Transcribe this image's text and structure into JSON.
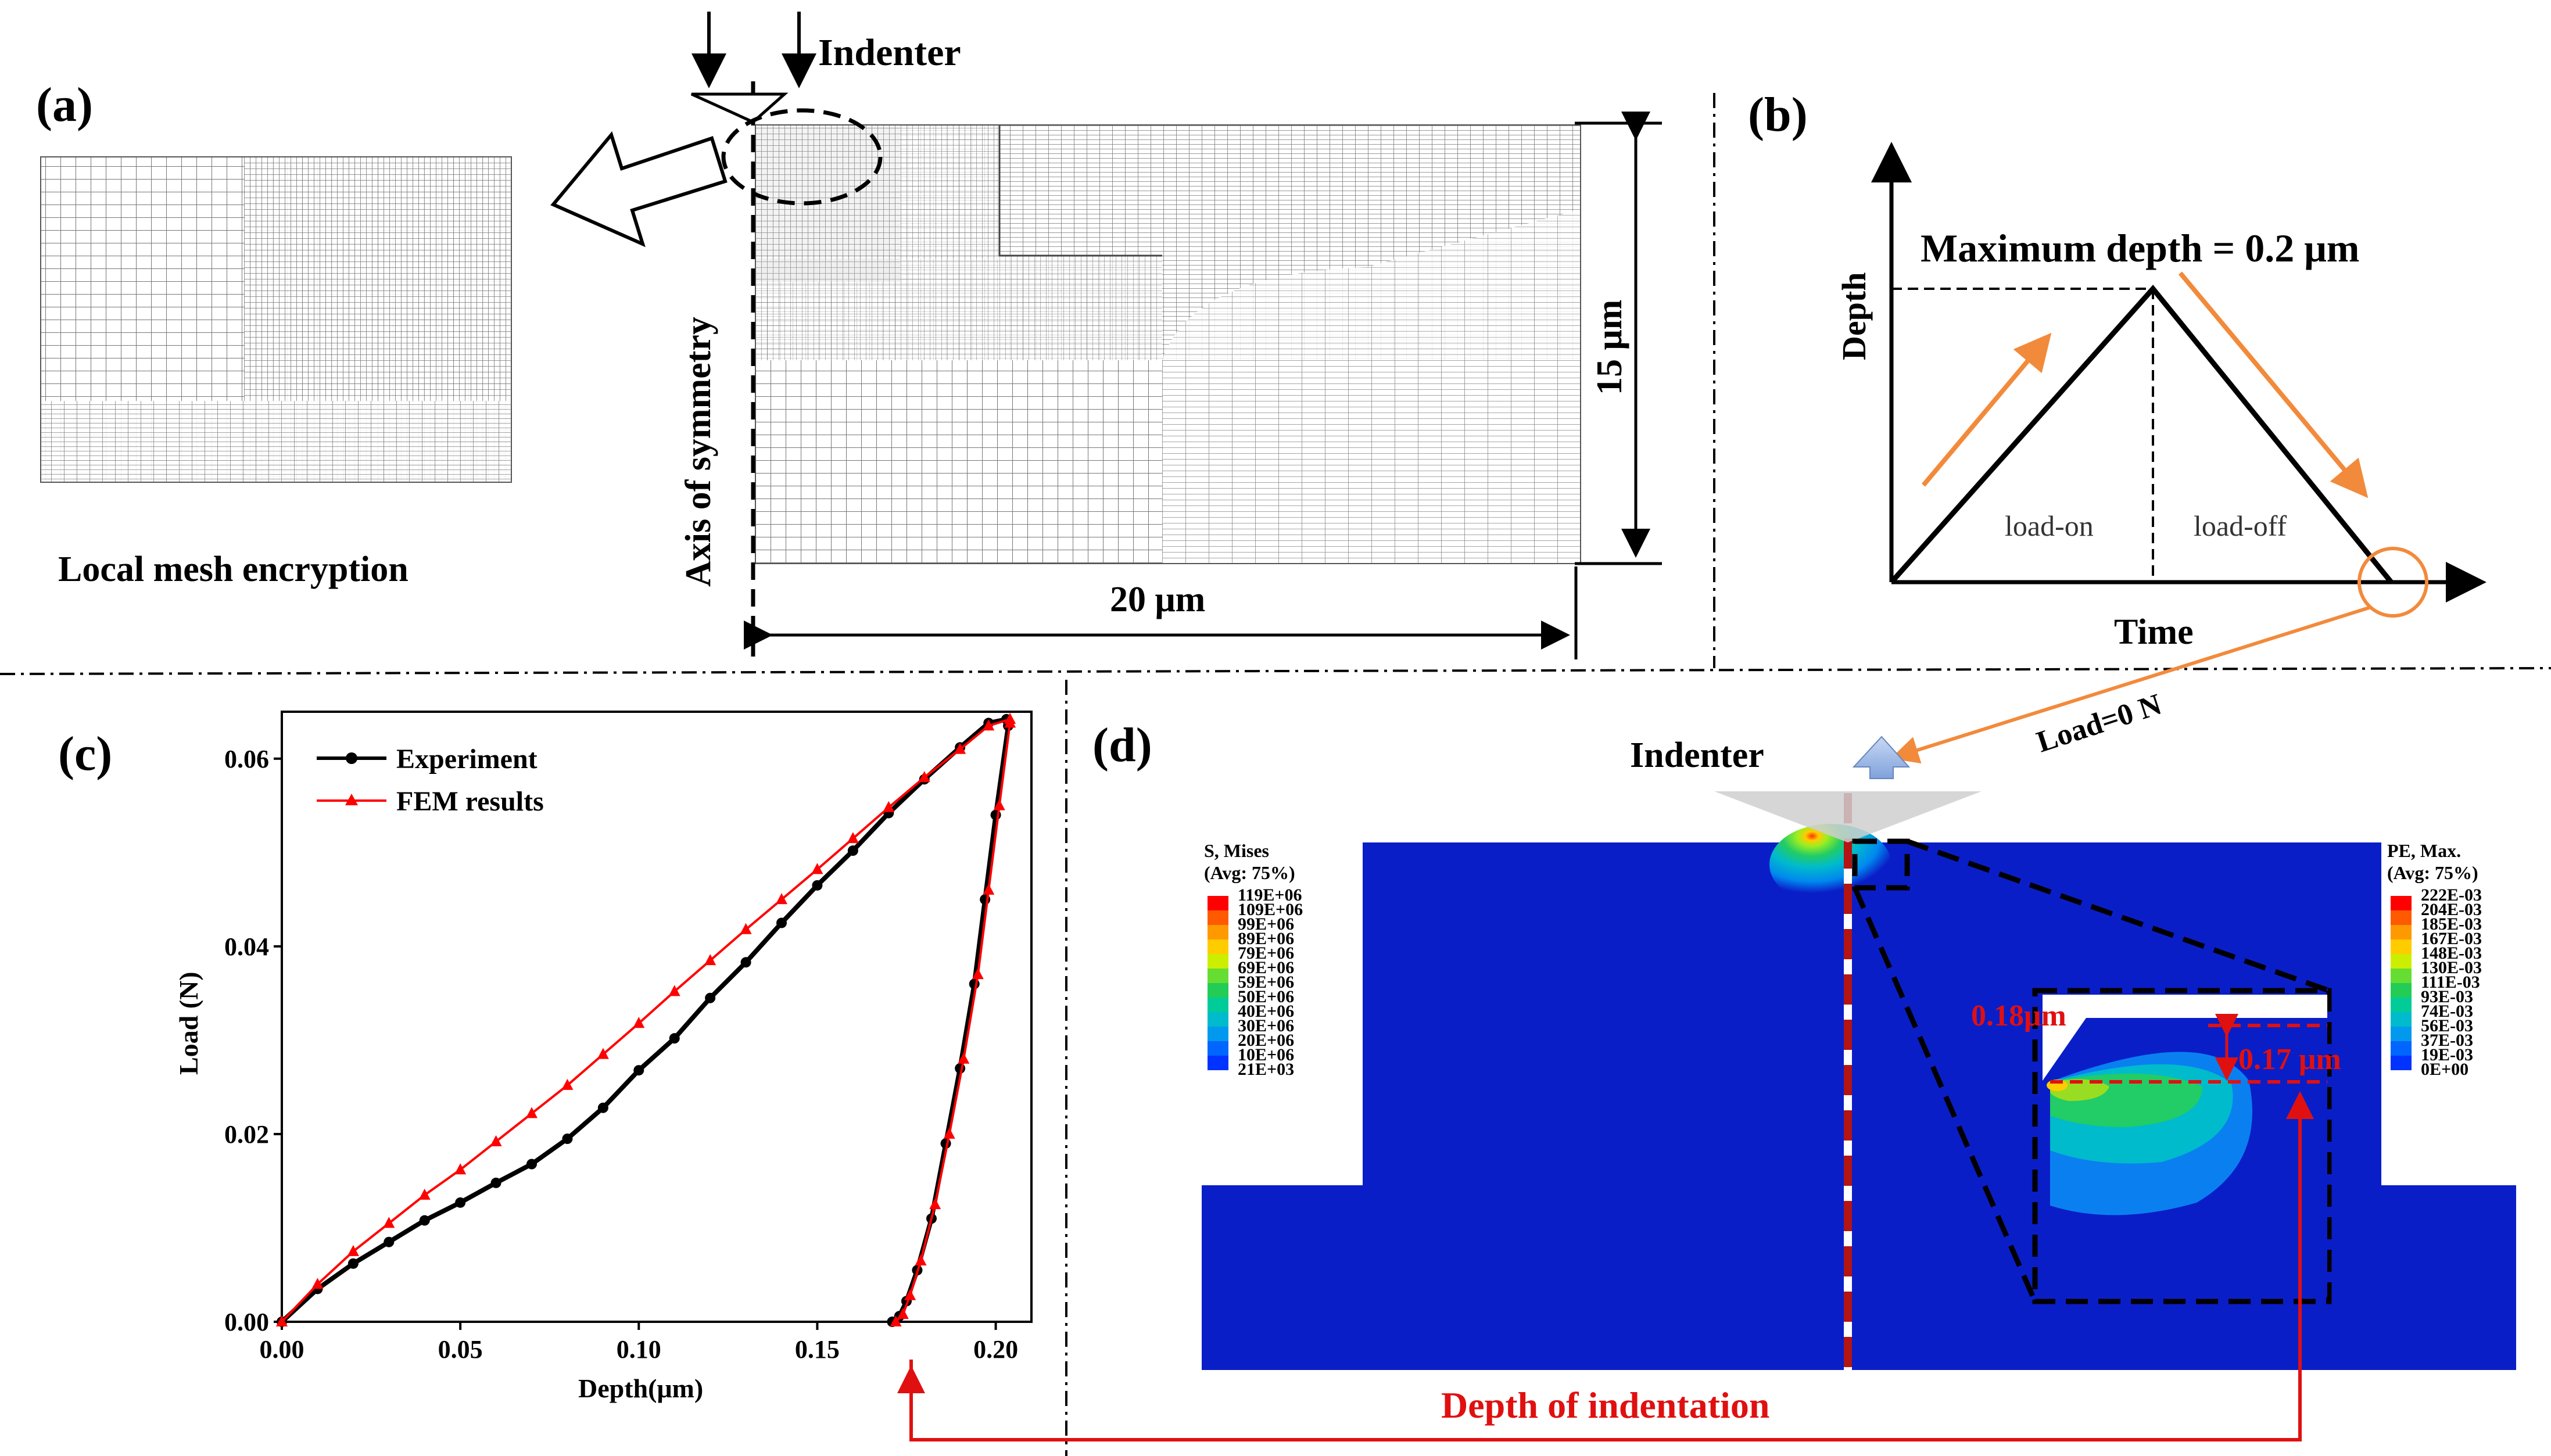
{
  "panel_a": {
    "label": "(a)",
    "indenter": "Indenter",
    "local_mesh": "Local mesh encryption",
    "axis": "Axis of symmetry",
    "height": "15 μm",
    "width": "20 μm"
  },
  "panel_b": {
    "label": "(b)",
    "max_depth": "Maximum depth = 0.2 μm",
    "ylabel": "Depth",
    "xlabel": "Time",
    "load_on": "load-on",
    "load_off": "load-off",
    "load_zero": "Load=0 N"
  },
  "panel_c": {
    "label": "(c)",
    "legend_exp": "Experiment",
    "legend_fem": "FEM results",
    "xlabel": "Depth(μm)",
    "ylabel": "Load (N)"
  },
  "panel_d": {
    "label": "(d)",
    "indenter": "Indenter",
    "mises_title1": "S, Mises",
    "mises_title2": "(Avg: 75%)",
    "mises_values": [
      "119E+06",
      "109E+06",
      "99E+06",
      "89E+06",
      "79E+06",
      "69E+06",
      "59E+06",
      "50E+06",
      "40E+06",
      "30E+06",
      "20E+06",
      "10E+06",
      "21E+03"
    ],
    "pe_title1": "PE, Max.",
    "pe_title2": "(Avg: 75%)",
    "pe_values": [
      "222E-03",
      "204E-03",
      "185E-03",
      "167E-03",
      "148E-03",
      "130E-03",
      "111E-03",
      "93E-03",
      "74E-03",
      "56E-03",
      "37E-03",
      "19E-03",
      "0E+00"
    ],
    "legend_colors": [
      "#ff0000",
      "#ff5a00",
      "#ff9900",
      "#ffcc00",
      "#ccee00",
      "#66dd33",
      "#22cc55",
      "#00cc99",
      "#00bbcc",
      "#0099ee",
      "#0066ff",
      "#0033ff",
      "#0000ee"
    ],
    "depth_018": "0.18μm",
    "depth_017": "0.17 μm",
    "depth_label": "Depth of indentation",
    "substrate_color": "#0a1ec8"
  },
  "chart_data": {
    "type": "line",
    "xlabel": "Depth(μm)",
    "ylabel": "Load (N)",
    "xlim": [
      0,
      0.21
    ],
    "ylim": [
      0,
      0.065
    ],
    "xticks": [
      "0.00",
      "0.05",
      "0.10",
      "0.15",
      "0.20"
    ],
    "yticks": [
      "0.00",
      "0.02",
      "0.04",
      "0.06"
    ],
    "series": [
      {
        "name": "Experiment",
        "color": "#000000",
        "x": [
          0.0,
          0.01,
          0.02,
          0.03,
          0.04,
          0.05,
          0.06,
          0.07,
          0.08,
          0.09,
          0.1,
          0.11,
          0.12,
          0.13,
          0.14,
          0.15,
          0.16,
          0.17,
          0.18,
          0.19,
          0.198,
          0.203,
          0.2035,
          0.2,
          0.197,
          0.194,
          0.19,
          0.186,
          0.182,
          0.178,
          0.175,
          0.173,
          0.171
        ],
        "y": [
          0.0,
          0.0035,
          0.0062,
          0.0085,
          0.0108,
          0.0127,
          0.0148,
          0.0168,
          0.0195,
          0.0228,
          0.0268,
          0.0302,
          0.0345,
          0.0383,
          0.0425,
          0.0465,
          0.0502,
          0.0542,
          0.0578,
          0.0612,
          0.0638,
          0.0642,
          0.0635,
          0.054,
          0.045,
          0.036,
          0.027,
          0.019,
          0.011,
          0.0055,
          0.0022,
          0.0006,
          0.0
        ]
      },
      {
        "name": "FEM results",
        "color": "#ff0000",
        "x": [
          0.0,
          0.01,
          0.02,
          0.03,
          0.04,
          0.05,
          0.06,
          0.07,
          0.08,
          0.09,
          0.1,
          0.11,
          0.12,
          0.13,
          0.14,
          0.15,
          0.16,
          0.17,
          0.18,
          0.19,
          0.198,
          0.204,
          0.204,
          0.201,
          0.198,
          0.195,
          0.191,
          0.187,
          0.183,
          0.179,
          0.176,
          0.174,
          0.172
        ],
        "y": [
          0.0,
          0.004,
          0.0075,
          0.0105,
          0.0135,
          0.0162,
          0.0192,
          0.0222,
          0.0252,
          0.0285,
          0.0318,
          0.0352,
          0.0385,
          0.0418,
          0.045,
          0.0482,
          0.0515,
          0.0548,
          0.058,
          0.061,
          0.0635,
          0.0642,
          0.0638,
          0.055,
          0.046,
          0.037,
          0.028,
          0.02,
          0.0125,
          0.0065,
          0.0028,
          0.0008,
          0.0
        ]
      }
    ]
  }
}
